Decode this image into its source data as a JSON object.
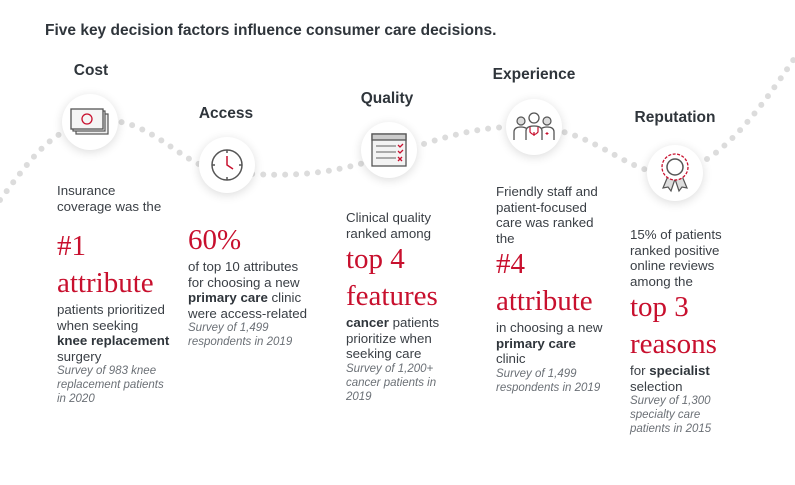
{
  "title": "Five key decision factors influence consumer care decisions.",
  "factors": [
    {
      "name": "Cost",
      "icon": "money-icon",
      "pre": "Insurance coverage was the",
      "stat": "#1 attribute",
      "post_a": "patients prioritized when seeking ",
      "post_bold": "knee replacement",
      "post_b": " surgery",
      "source": "Survey of 983 knee replacement patients in 2020"
    },
    {
      "name": "Access",
      "icon": "clock-icon",
      "stat": "60%",
      "post_a": "of top 10 attributes for choosing a new ",
      "post_bold": "primary care",
      "post_b": " clinic were access-related",
      "source": "Survey of 1,499 respondents in 2019"
    },
    {
      "name": "Quality",
      "icon": "checklist-icon",
      "pre": "Clinical quality ranked among",
      "stat": "top 4 features",
      "post_a": "",
      "post_bold": "cancer",
      "post_b": " patients prioritize when seeking care",
      "source": "Survey of 1,200+ cancer patients in 2019"
    },
    {
      "name": "Experience",
      "icon": "care-team-icon",
      "pre": "Friendly staff and patient-focused care was ranked the",
      "stat": "#4 attribute",
      "post_a": "in choosing a new ",
      "post_bold": "primary care",
      "post_b": " clinic",
      "source": "Survey of 1,499 respondents in 2019"
    },
    {
      "name": "Reputation",
      "icon": "award-ribbon-icon",
      "pre": "15% of patients ranked positive online reviews among the",
      "stat": "top 3 reasons",
      "post_a": "for ",
      "post_bold": "specialist",
      "post_b": " selection",
      "source": "Survey of 1,300 specialty care patients in 2015"
    }
  ],
  "colors": {
    "accent": "#c8102e",
    "dots": "#dcdcdc",
    "text": "#3a3f45"
  }
}
